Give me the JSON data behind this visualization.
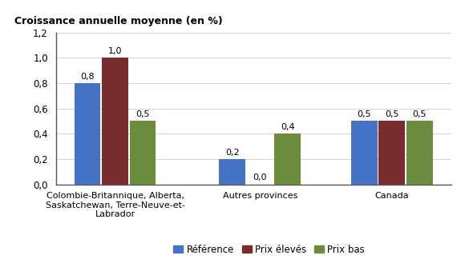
{
  "categories": [
    "Colombie-Britannique, Alberta,\nSaskatchewan, Terre-Neuve-et-\nLabrador",
    "Autres provinces",
    "Canada"
  ],
  "series": {
    "Référence": [
      0.8,
      0.2,
      0.5
    ],
    "Prix élevés": [
      1.0,
      0.0,
      0.5
    ],
    "Prix bas": [
      0.5,
      0.4,
      0.5
    ]
  },
  "colors": {
    "Référence": "#4472C4",
    "Prix élevés": "#7B2D2D",
    "Prix bas": "#6B8C3E"
  },
  "ylabel": "Croissance annuelle moyenne (en %)",
  "ylim": [
    0,
    1.2
  ],
  "yticks": [
    0.0,
    0.2,
    0.4,
    0.6,
    0.8,
    1.0,
    1.2
  ],
  "ytick_labels": [
    "0,0",
    "0,2",
    "0,4",
    "0,6",
    "0,8",
    "1,0",
    "1,2"
  ],
  "bar_labels": {
    "Référence": [
      "0,8",
      "0,2",
      "0,5"
    ],
    "Prix élevés": [
      "1,0",
      "0,0",
      "0,5"
    ],
    "Prix bas": [
      "0,5",
      "0,4",
      "0,5"
    ]
  },
  "legend_labels": [
    "Référence",
    "Prix élevés",
    "Prix bas"
  ],
  "bar_width": 0.2,
  "background_color": "#ffffff",
  "ylabel_fontsize": 9,
  "tick_fontsize": 8.5,
  "label_fontsize": 8,
  "legend_fontsize": 8.5,
  "xticklabel_fontsize": 8,
  "group_positions": [
    0,
    1.1,
    2.1
  ]
}
